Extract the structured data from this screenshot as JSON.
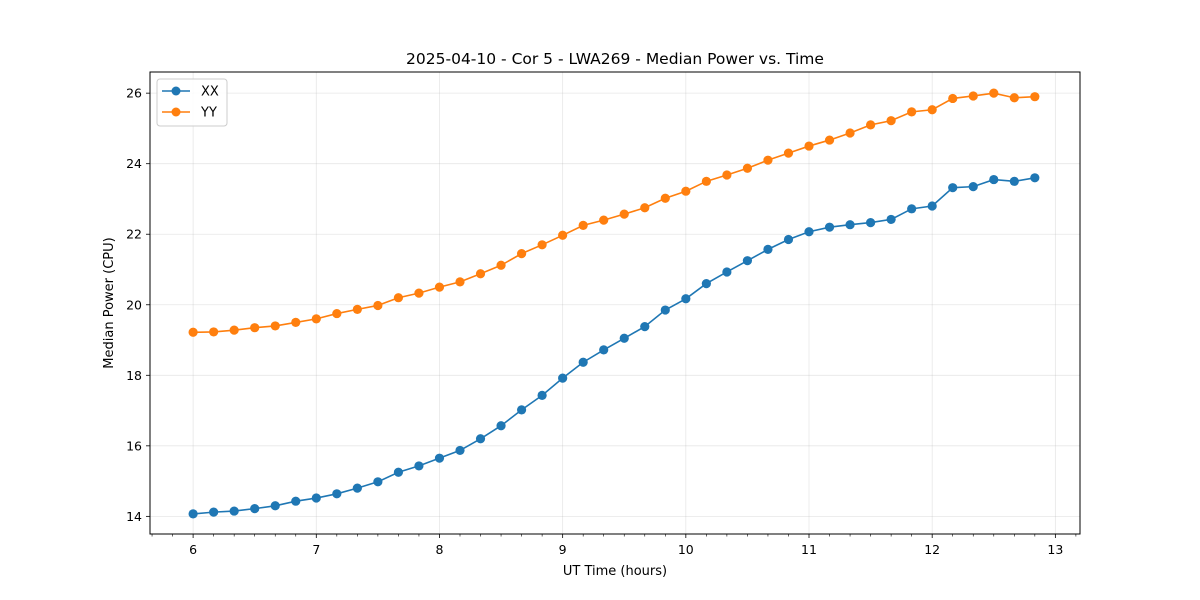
{
  "chart_data": {
    "type": "line",
    "title": "2025-04-10 - Cor 5 - LWA269 - Median Power vs. Time",
    "xlabel": "UT Time (hours)",
    "ylabel": "Median Power (CPU)",
    "xlim": [
      5.65,
      13.2
    ],
    "ylim": [
      13.5,
      26.6
    ],
    "xticks": [
      6,
      7,
      8,
      9,
      10,
      11,
      12,
      13
    ],
    "yticks": [
      14,
      16,
      18,
      20,
      22,
      24,
      26
    ],
    "grid": true,
    "legend_position": "top-left",
    "x": [
      6.0,
      6.1667,
      6.3333,
      6.5,
      6.6667,
      6.8333,
      7.0,
      7.1667,
      7.3333,
      7.5,
      7.6667,
      7.8333,
      8.0,
      8.1667,
      8.3333,
      8.5,
      8.6667,
      8.8333,
      9.0,
      9.1667,
      9.3333,
      9.5,
      9.6667,
      9.8333,
      10.0,
      10.1667,
      10.3333,
      10.5,
      10.6667,
      10.8333,
      11.0,
      11.1667,
      11.3333,
      11.5,
      11.6667,
      11.8333,
      12.0,
      12.1667,
      12.3333,
      12.5,
      12.6667,
      12.8333
    ],
    "series": [
      {
        "name": "XX",
        "color": "#1f77b4",
        "values": [
          14.07,
          14.12,
          14.15,
          14.22,
          14.3,
          14.43,
          14.52,
          14.64,
          14.8,
          14.98,
          15.25,
          15.43,
          15.65,
          15.87,
          16.2,
          16.57,
          17.02,
          17.43,
          17.92,
          18.37,
          18.72,
          19.05,
          19.38,
          19.85,
          20.17,
          20.6,
          20.93,
          21.25,
          21.57,
          21.85,
          22.07,
          22.2,
          22.27,
          22.33,
          22.42,
          22.72,
          22.8,
          23.32,
          23.35,
          23.55,
          23.5,
          23.6
        ]
      },
      {
        "name": "YY",
        "color": "#ff7f0e",
        "values": [
          19.22,
          19.23,
          19.28,
          19.35,
          19.4,
          19.5,
          19.6,
          19.75,
          19.87,
          19.98,
          20.2,
          20.33,
          20.5,
          20.65,
          20.88,
          21.12,
          21.45,
          21.7,
          21.97,
          22.25,
          22.4,
          22.57,
          22.75,
          23.02,
          23.22,
          23.5,
          23.68,
          23.87,
          24.1,
          24.3,
          24.5,
          24.67,
          24.87,
          25.1,
          25.22,
          25.47,
          25.53,
          25.85,
          25.92,
          26.0,
          25.87,
          25.9
        ]
      }
    ]
  }
}
